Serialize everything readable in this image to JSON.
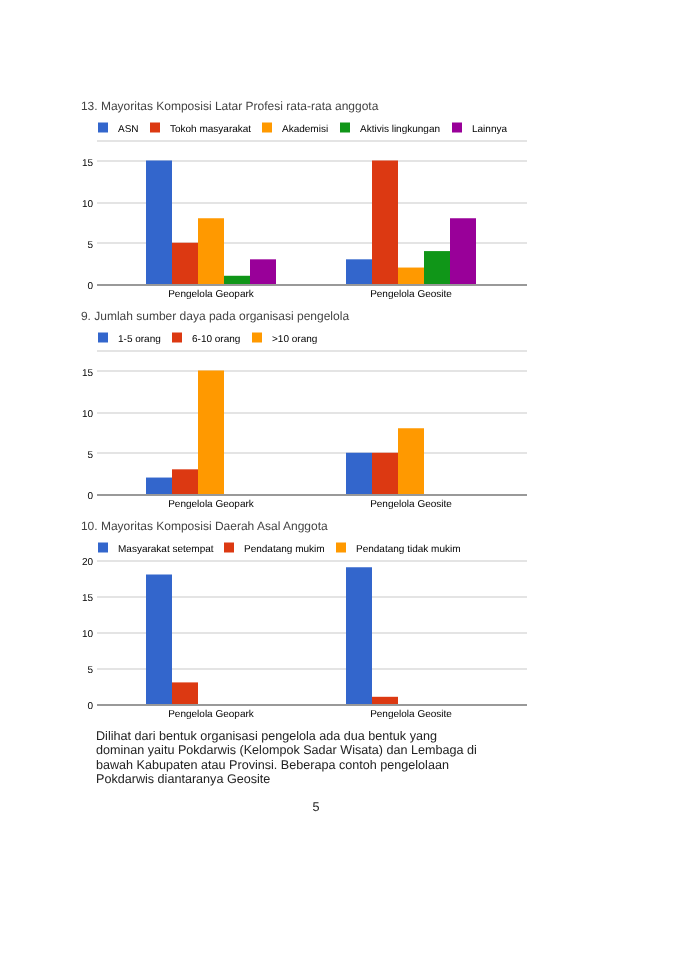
{
  "chart_data": [
    {
      "type": "bar",
      "title": "13. Mayoritas Komposisi Latar Profesi rata-rata anggota",
      "categories": [
        "Pengelola Geopark",
        "Pengelola Geosite"
      ],
      "series": [
        {
          "name": "ASN",
          "color": "#3366cc",
          "values": [
            15,
            3
          ]
        },
        {
          "name": "Tokoh masyarakat",
          "color": "#dc3912",
          "values": [
            5,
            15
          ]
        },
        {
          "name": "Akademisi",
          "color": "#ff9900",
          "values": [
            8,
            2
          ]
        },
        {
          "name": "Aktivis lingkungan",
          "color": "#109618",
          "values": [
            1,
            4
          ]
        },
        {
          "name": "Lainnya",
          "color": "#990099",
          "values": [
            3,
            8
          ]
        }
      ],
      "ylim": [
        0,
        17.5
      ],
      "yticks": [
        0,
        5,
        10,
        15,
        {
          "value": 17.5,
          "label": null
        }
      ],
      "grid": "y",
      "legend": "top"
    },
    {
      "type": "bar",
      "title": "9. Jumlah sumber daya pada organisasi pengelola",
      "categories": [
        "Pengelola Geopark",
        "Pengelola Geosite"
      ],
      "series": [
        {
          "name": "1-5 orang",
          "color": "#3366cc",
          "values": [
            2,
            5
          ]
        },
        {
          "name": "6-10 orang",
          "color": "#dc3912",
          "values": [
            3,
            5
          ]
        },
        {
          "name": ">10 orang",
          "color": "#ff9900",
          "values": [
            15,
            8
          ]
        }
      ],
      "ylim": [
        0,
        17.5
      ],
      "yticks": [
        0,
        5,
        10,
        15,
        {
          "value": 17.5,
          "label": null
        }
      ],
      "grid": "y",
      "legend": "top"
    },
    {
      "type": "bar",
      "title": "10. Mayoritas Komposisi Daerah Asal Anggota",
      "categories": [
        "Pengelola Geopark",
        "Pengelola Geosite"
      ],
      "series": [
        {
          "name": "Masyarakat setempat",
          "color": "#3366cc",
          "values": [
            18,
            19
          ]
        },
        {
          "name": "Pendatang mukim",
          "color": "#dc3912",
          "values": [
            3,
            1
          ]
        },
        {
          "name": "Pendatang tidak mukim",
          "color": "#ff9900",
          "values": [
            0,
            0
          ]
        }
      ],
      "ylim": [
        0,
        20
      ],
      "yticks": [
        0,
        5,
        10,
        15,
        20
      ],
      "grid": "y",
      "legend": "top",
      "annotations": [
        "Dilihat dari bentuk organisasi pengelola ada dua bentuk yang dominan yaitu Pokdarwis (Kelompok Sadar Wisata) dan Lembaga di bawah Kabupaten atau Provinsi. Beberapa contoh pengelolaan Pokdarwis diantaranya Geosite",
        "5"
      ]
    }
  ]
}
